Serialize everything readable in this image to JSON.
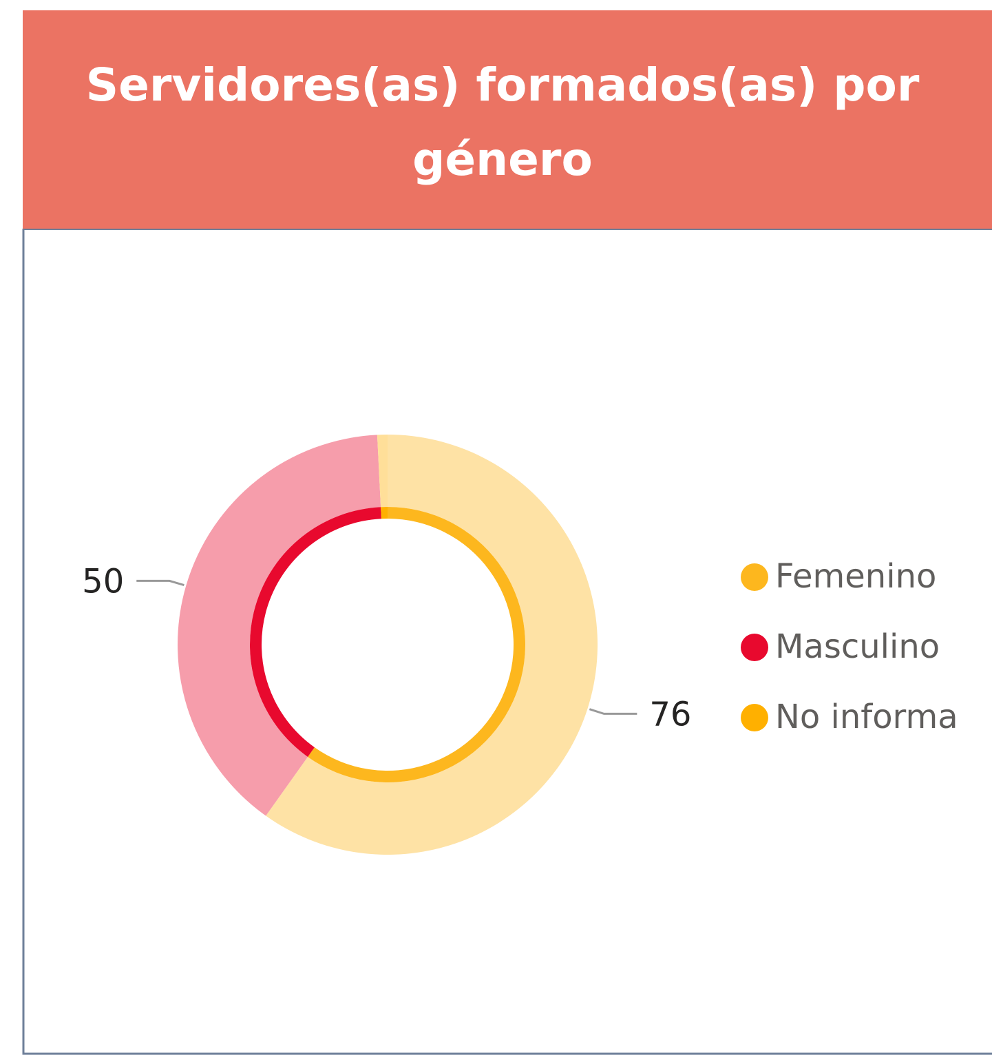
{
  "chart_data": {
    "type": "donut",
    "title": "Servidores(as) formados(as) por género",
    "categories": [
      "Femenino",
      "Masculino",
      "No informa"
    ],
    "values": [
      76,
      50,
      1
    ],
    "colors": [
      "#FDB71E",
      "#E8092E",
      "#FFB000"
    ],
    "legend": "right"
  }
}
